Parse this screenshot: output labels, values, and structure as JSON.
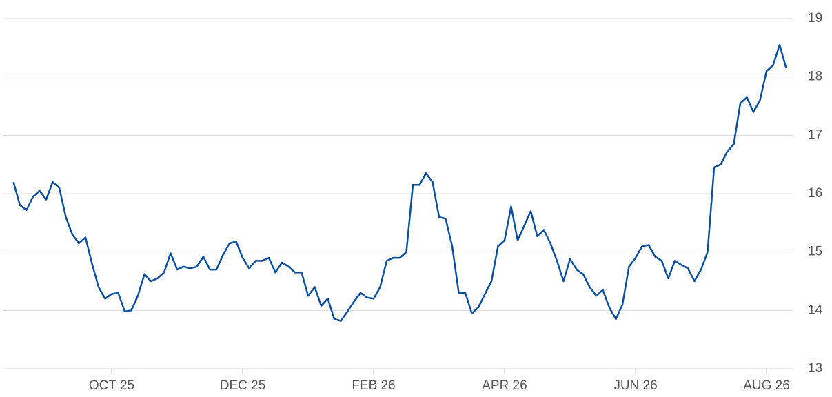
{
  "chart_data": {
    "type": "line",
    "categories": [
      null,
      null,
      null,
      null,
      null,
      null,
      null,
      null,
      null,
      null,
      null,
      null,
      null,
      null,
      null,
      "OCT 25",
      null,
      null,
      null,
      null,
      null,
      null,
      null,
      null,
      null,
      null,
      null,
      null,
      null,
      null,
      null,
      null,
      null,
      null,
      null,
      "DEC 25",
      null,
      null,
      null,
      null,
      null,
      null,
      null,
      null,
      null,
      null,
      null,
      null,
      null,
      null,
      null,
      null,
      null,
      null,
      null,
      "FEB 26",
      null,
      null,
      null,
      null,
      null,
      null,
      null,
      null,
      null,
      null,
      null,
      null,
      null,
      null,
      null,
      null,
      null,
      null,
      null,
      "APR 26",
      null,
      null,
      null,
      null,
      null,
      null,
      null,
      null,
      null,
      null,
      null,
      null,
      null,
      null,
      null,
      null,
      null,
      null,
      null,
      "JUN 26",
      null,
      null,
      null,
      null,
      null,
      null,
      null,
      null,
      null,
      null,
      null,
      null,
      null,
      null,
      null,
      null,
      null,
      null,
      null,
      "AUG 26",
      null,
      null,
      null
    ],
    "values": [
      16.2,
      15.8,
      15.72,
      15.95,
      16.05,
      15.9,
      16.2,
      16.1,
      15.6,
      15.3,
      15.15,
      15.25,
      14.8,
      14.4,
      14.2,
      14.28,
      14.3,
      13.98,
      14.0,
      14.25,
      14.62,
      14.5,
      14.55,
      14.65,
      14.98,
      14.7,
      14.75,
      14.72,
      14.75,
      14.92,
      14.7,
      14.7,
      14.95,
      15.15,
      15.18,
      14.9,
      14.72,
      14.85,
      14.85,
      14.9,
      14.65,
      14.82,
      14.75,
      14.65,
      14.65,
      14.25,
      14.4,
      14.08,
      14.2,
      13.85,
      13.82,
      13.98,
      14.15,
      14.3,
      14.22,
      14.2,
      14.4,
      14.85,
      14.9,
      14.9,
      15.0,
      16.15,
      16.15,
      16.35,
      16.2,
      15.6,
      15.57,
      15.1,
      14.3,
      14.3,
      13.95,
      14.05,
      14.28,
      14.5,
      15.1,
      15.2,
      15.78,
      15.2,
      15.45,
      15.7,
      15.27,
      15.38,
      15.15,
      14.85,
      14.5,
      14.88,
      14.7,
      14.62,
      14.4,
      14.25,
      14.35,
      14.05,
      13.85,
      14.1,
      14.75,
      14.9,
      15.1,
      15.12,
      14.92,
      14.85,
      14.55,
      14.85,
      14.78,
      14.72,
      14.5,
      14.7,
      15.0,
      16.45,
      16.5,
      16.72,
      16.85,
      17.55,
      17.65,
      17.4,
      17.6,
      18.1,
      18.2,
      18.55,
      18.15
    ],
    "color": "#0b4f9c",
    "ylim": [
      13,
      19
    ],
    "yticks": [
      13,
      14,
      15,
      16,
      17,
      18,
      19
    ],
    "grid": true,
    "y_axis_side": "right"
  }
}
